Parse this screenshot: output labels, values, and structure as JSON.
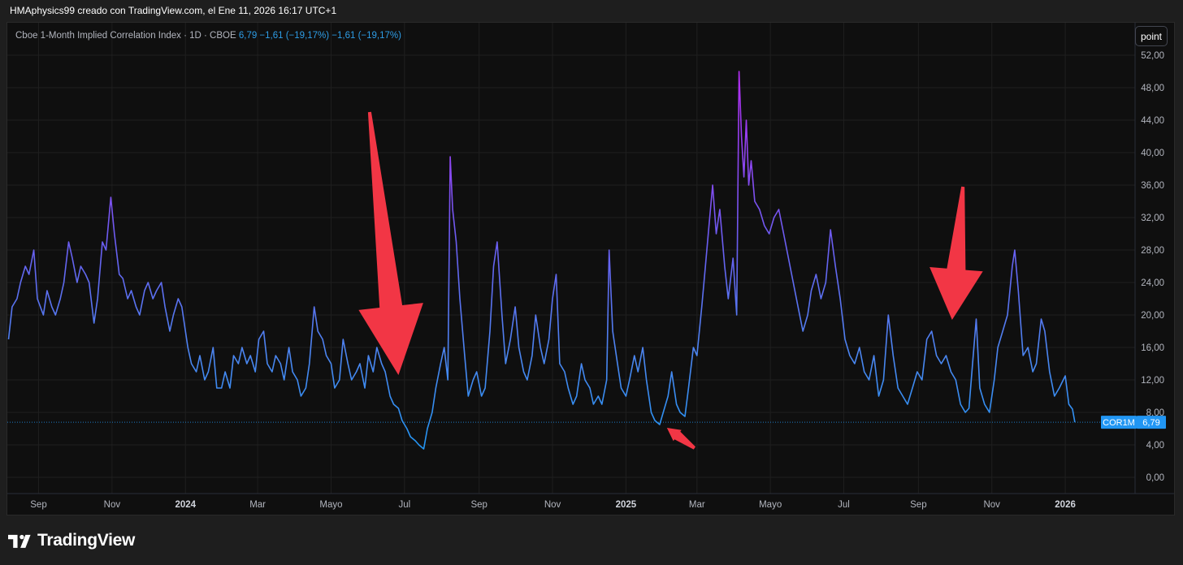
{
  "header": {
    "caption": "HMAphysics99 creado con TradingView.com, el Ene 11, 2026 16:17 UTC+1"
  },
  "legend": {
    "name": "Cboe 1-Month Implied Correlation Index · 1D · CBOE",
    "values": "6,79  −1,61 (−19,17%)  −1,61 (−19,17%)"
  },
  "toolbar": {
    "scale_label": "point"
  },
  "price_tag": {
    "symbol": "COR1M",
    "value": "6,79"
  },
  "footer": {
    "brand": "TradingView"
  },
  "colors": {
    "background": "#0f0f0f",
    "grid": "#1f1f1f",
    "line_low": "#2196f3",
    "line_mid": "#6a5df0",
    "line_high": "#b22cf0",
    "arrow": "#f23645",
    "tag": "#2196f3"
  },
  "chart_data": {
    "type": "line",
    "title": "",
    "xlabel": "",
    "ylabel": "",
    "ylim": [
      -2,
      54
    ],
    "y_ticks": [
      "0,00",
      "4,00",
      "8,00",
      "12,00",
      "16,00",
      "20,00",
      "24,00",
      "28,00",
      "32,00",
      "36,00",
      "40,00",
      "44,00",
      "48,00",
      "52,00"
    ],
    "x_ticks": [
      {
        "label": "Sep",
        "date": "2023-09-01",
        "bold": false
      },
      {
        "label": "Nov",
        "date": "2023-11-01",
        "bold": false
      },
      {
        "label": "2024",
        "date": "2024-01-01",
        "bold": true
      },
      {
        "label": "Mar",
        "date": "2024-03-01",
        "bold": false
      },
      {
        "label": "Mayo",
        "date": "2024-05-01",
        "bold": false
      },
      {
        "label": "Jul",
        "date": "2024-07-01",
        "bold": false
      },
      {
        "label": "Sep",
        "date": "2024-09-01",
        "bold": false
      },
      {
        "label": "Nov",
        "date": "2024-11-01",
        "bold": false
      },
      {
        "label": "2025",
        "date": "2025-01-01",
        "bold": true
      },
      {
        "label": "Mar",
        "date": "2025-03-01",
        "bold": false
      },
      {
        "label": "Mayo",
        "date": "2025-05-01",
        "bold": false
      },
      {
        "label": "Jul",
        "date": "2025-07-01",
        "bold": false
      },
      {
        "label": "Sep",
        "date": "2025-09-01",
        "bold": false
      },
      {
        "label": "Nov",
        "date": "2025-11-01",
        "bold": false
      },
      {
        "label": "2026",
        "date": "2026-01-01",
        "bold": true
      }
    ],
    "x_range": [
      "2023-08-06",
      "2026-02-28"
    ],
    "series": [
      {
        "points": [
          [
            "2023-08-07",
            17
          ],
          [
            "2023-08-10",
            21
          ],
          [
            "2023-08-14",
            22
          ],
          [
            "2023-08-17",
            24
          ],
          [
            "2023-08-21",
            26
          ],
          [
            "2023-08-24",
            25
          ],
          [
            "2023-08-28",
            28
          ],
          [
            "2023-08-31",
            22
          ],
          [
            "2023-09-05",
            20
          ],
          [
            "2023-09-08",
            23
          ],
          [
            "2023-09-12",
            21
          ],
          [
            "2023-09-15",
            20
          ],
          [
            "2023-09-19",
            22
          ],
          [
            "2023-09-22",
            24
          ],
          [
            "2023-09-26",
            29
          ],
          [
            "2023-09-29",
            27
          ],
          [
            "2023-10-03",
            24
          ],
          [
            "2023-10-06",
            26
          ],
          [
            "2023-10-10",
            25
          ],
          [
            "2023-10-13",
            24
          ],
          [
            "2023-10-17",
            19
          ],
          [
            "2023-10-20",
            22
          ],
          [
            "2023-10-24",
            29
          ],
          [
            "2023-10-27",
            28
          ],
          [
            "2023-10-31",
            34.5
          ],
          [
            "2023-11-03",
            30
          ],
          [
            "2023-11-07",
            25
          ],
          [
            "2023-11-10",
            24.5
          ],
          [
            "2023-11-14",
            22
          ],
          [
            "2023-11-17",
            23
          ],
          [
            "2023-11-21",
            21
          ],
          [
            "2023-11-24",
            20
          ],
          [
            "2023-11-28",
            23
          ],
          [
            "2023-12-01",
            24
          ],
          [
            "2023-12-05",
            22
          ],
          [
            "2023-12-08",
            23
          ],
          [
            "2023-12-12",
            24
          ],
          [
            "2023-12-15",
            21
          ],
          [
            "2023-12-19",
            18
          ],
          [
            "2023-12-22",
            20
          ],
          [
            "2023-12-26",
            22
          ],
          [
            "2023-12-29",
            21
          ],
          [
            "2024-01-03",
            16
          ],
          [
            "2024-01-06",
            14
          ],
          [
            "2024-01-10",
            13
          ],
          [
            "2024-01-13",
            15
          ],
          [
            "2024-01-17",
            12
          ],
          [
            "2024-01-20",
            13
          ],
          [
            "2024-01-24",
            16
          ],
          [
            "2024-01-27",
            11
          ],
          [
            "2024-01-31",
            11
          ],
          [
            "2024-02-03",
            13
          ],
          [
            "2024-02-07",
            11
          ],
          [
            "2024-02-10",
            15
          ],
          [
            "2024-02-14",
            14
          ],
          [
            "2024-02-17",
            16
          ],
          [
            "2024-02-21",
            14
          ],
          [
            "2024-02-24",
            15
          ],
          [
            "2024-02-28",
            13
          ],
          [
            "2024-03-02",
            17
          ],
          [
            "2024-03-06",
            18
          ],
          [
            "2024-03-09",
            14
          ],
          [
            "2024-03-13",
            13
          ],
          [
            "2024-03-16",
            15
          ],
          [
            "2024-03-20",
            14
          ],
          [
            "2024-03-23",
            12
          ],
          [
            "2024-03-27",
            16
          ],
          [
            "2024-03-30",
            13
          ],
          [
            "2024-04-03",
            12
          ],
          [
            "2024-04-06",
            10
          ],
          [
            "2024-04-10",
            11
          ],
          [
            "2024-04-13",
            14
          ],
          [
            "2024-04-17",
            21
          ],
          [
            "2024-04-20",
            18
          ],
          [
            "2024-04-24",
            17
          ],
          [
            "2024-04-27",
            15
          ],
          [
            "2024-05-01",
            14
          ],
          [
            "2024-05-04",
            11
          ],
          [
            "2024-05-08",
            12
          ],
          [
            "2024-05-11",
            17
          ],
          [
            "2024-05-15",
            14
          ],
          [
            "2024-05-18",
            12
          ],
          [
            "2024-05-22",
            13
          ],
          [
            "2024-05-25",
            14
          ],
          [
            "2024-05-29",
            11
          ],
          [
            "2024-06-01",
            15
          ],
          [
            "2024-06-05",
            13
          ],
          [
            "2024-06-08",
            16
          ],
          [
            "2024-06-12",
            14
          ],
          [
            "2024-06-15",
            13
          ],
          [
            "2024-06-19",
            10
          ],
          [
            "2024-06-22",
            9
          ],
          [
            "2024-06-26",
            8.5
          ],
          [
            "2024-06-29",
            7
          ],
          [
            "2024-07-03",
            6
          ],
          [
            "2024-07-06",
            5
          ],
          [
            "2024-07-10",
            4.5
          ],
          [
            "2024-07-13",
            4
          ],
          [
            "2024-07-17",
            3.5
          ],
          [
            "2024-07-20",
            6
          ],
          [
            "2024-07-24",
            8
          ],
          [
            "2024-07-27",
            11
          ],
          [
            "2024-07-31",
            14
          ],
          [
            "2024-08-03",
            16
          ],
          [
            "2024-08-06",
            12
          ],
          [
            "2024-08-08",
            39.5
          ],
          [
            "2024-08-10",
            33
          ],
          [
            "2024-08-13",
            29
          ],
          [
            "2024-08-16",
            22
          ],
          [
            "2024-08-20",
            15
          ],
          [
            "2024-08-23",
            10
          ],
          [
            "2024-08-27",
            12
          ],
          [
            "2024-08-30",
            13
          ],
          [
            "2024-09-03",
            10
          ],
          [
            "2024-09-06",
            11
          ],
          [
            "2024-09-10",
            18
          ],
          [
            "2024-09-13",
            26
          ],
          [
            "2024-09-16",
            29
          ],
          [
            "2024-09-20",
            20
          ],
          [
            "2024-09-23",
            14
          ],
          [
            "2024-09-27",
            17
          ],
          [
            "2024-10-01",
            21
          ],
          [
            "2024-10-04",
            16
          ],
          [
            "2024-10-08",
            13
          ],
          [
            "2024-10-11",
            12
          ],
          [
            "2024-10-15",
            15
          ],
          [
            "2024-10-18",
            20
          ],
          [
            "2024-10-22",
            16
          ],
          [
            "2024-10-25",
            14
          ],
          [
            "2024-10-29",
            17
          ],
          [
            "2024-11-01",
            22
          ],
          [
            "2024-11-04",
            25
          ],
          [
            "2024-11-07",
            14
          ],
          [
            "2024-11-11",
            13
          ],
          [
            "2024-11-14",
            11
          ],
          [
            "2024-11-18",
            9
          ],
          [
            "2024-11-21",
            10
          ],
          [
            "2024-11-25",
            14
          ],
          [
            "2024-11-28",
            12
          ],
          [
            "2024-12-02",
            11
          ],
          [
            "2024-12-05",
            9
          ],
          [
            "2024-12-09",
            10
          ],
          [
            "2024-12-12",
            9
          ],
          [
            "2024-12-16",
            12
          ],
          [
            "2024-12-18",
            28
          ],
          [
            "2024-12-21",
            18
          ],
          [
            "2024-12-25",
            14
          ],
          [
            "2024-12-28",
            11
          ],
          [
            "2025-01-01",
            10
          ],
          [
            "2025-01-04",
            12
          ],
          [
            "2025-01-08",
            15
          ],
          [
            "2025-01-11",
            13
          ],
          [
            "2025-01-15",
            16
          ],
          [
            "2025-01-18",
            12
          ],
          [
            "2025-01-22",
            8
          ],
          [
            "2025-01-25",
            7
          ],
          [
            "2025-01-29",
            6.5
          ],
          [
            "2025-02-01",
            8
          ],
          [
            "2025-02-05",
            10
          ],
          [
            "2025-02-08",
            13
          ],
          [
            "2025-02-12",
            9
          ],
          [
            "2025-02-15",
            8
          ],
          [
            "2025-02-19",
            7.5
          ],
          [
            "2025-02-22",
            11
          ],
          [
            "2025-02-26",
            16
          ],
          [
            "2025-03-01",
            15
          ],
          [
            "2025-03-05",
            21
          ],
          [
            "2025-03-08",
            26
          ],
          [
            "2025-03-11",
            31
          ],
          [
            "2025-03-14",
            36
          ],
          [
            "2025-03-17",
            30
          ],
          [
            "2025-03-20",
            33
          ],
          [
            "2025-03-24",
            26
          ],
          [
            "2025-03-27",
            22
          ],
          [
            "2025-03-31",
            27
          ],
          [
            "2025-04-03",
            20
          ],
          [
            "2025-04-05",
            50
          ],
          [
            "2025-04-07",
            42
          ],
          [
            "2025-04-09",
            37
          ],
          [
            "2025-04-11",
            44
          ],
          [
            "2025-04-13",
            36
          ],
          [
            "2025-04-15",
            39
          ],
          [
            "2025-04-18",
            34
          ],
          [
            "2025-04-22",
            33
          ],
          [
            "2025-04-26",
            31
          ],
          [
            "2025-04-30",
            30
          ],
          [
            "2025-05-04",
            32
          ],
          [
            "2025-05-08",
            33
          ],
          [
            "2025-05-12",
            30
          ],
          [
            "2025-05-16",
            27
          ],
          [
            "2025-05-20",
            24
          ],
          [
            "2025-05-24",
            21
          ],
          [
            "2025-05-28",
            18
          ],
          [
            "2025-06-01",
            20
          ],
          [
            "2025-06-04",
            23
          ],
          [
            "2025-06-08",
            25
          ],
          [
            "2025-06-12",
            22
          ],
          [
            "2025-06-16",
            24
          ],
          [
            "2025-06-20",
            30.5
          ],
          [
            "2025-06-24",
            26
          ],
          [
            "2025-06-28",
            22
          ],
          [
            "2025-07-02",
            17
          ],
          [
            "2025-07-06",
            15
          ],
          [
            "2025-07-10",
            14
          ],
          [
            "2025-07-14",
            16
          ],
          [
            "2025-07-18",
            13
          ],
          [
            "2025-07-22",
            12
          ],
          [
            "2025-07-26",
            15
          ],
          [
            "2025-07-30",
            10
          ],
          [
            "2025-08-03",
            12
          ],
          [
            "2025-08-07",
            20
          ],
          [
            "2025-08-11",
            15
          ],
          [
            "2025-08-15",
            11
          ],
          [
            "2025-08-19",
            10
          ],
          [
            "2025-08-23",
            9
          ],
          [
            "2025-08-27",
            11
          ],
          [
            "2025-08-31",
            13
          ],
          [
            "2025-09-04",
            12
          ],
          [
            "2025-09-08",
            17
          ],
          [
            "2025-09-12",
            18
          ],
          [
            "2025-09-16",
            15
          ],
          [
            "2025-09-20",
            14
          ],
          [
            "2025-09-24",
            15
          ],
          [
            "2025-09-28",
            13
          ],
          [
            "2025-10-02",
            12
          ],
          [
            "2025-10-06",
            9
          ],
          [
            "2025-10-10",
            8
          ],
          [
            "2025-10-13",
            8.5
          ],
          [
            "2025-10-16",
            14
          ],
          [
            "2025-10-19",
            19.5
          ],
          [
            "2025-10-22",
            11
          ],
          [
            "2025-10-26",
            9
          ],
          [
            "2025-10-30",
            8
          ],
          [
            "2025-11-03",
            12
          ],
          [
            "2025-11-06",
            16
          ],
          [
            "2025-11-10",
            18
          ],
          [
            "2025-11-14",
            20
          ],
          [
            "2025-11-18",
            26
          ],
          [
            "2025-11-20",
            28
          ],
          [
            "2025-11-23",
            23
          ],
          [
            "2025-11-27",
            15
          ],
          [
            "2025-12-01",
            16
          ],
          [
            "2025-12-05",
            13
          ],
          [
            "2025-12-08",
            14
          ],
          [
            "2025-12-12",
            19.5
          ],
          [
            "2025-12-15",
            18
          ],
          [
            "2025-12-19",
            13
          ],
          [
            "2025-12-23",
            10
          ],
          [
            "2025-12-27",
            11
          ],
          [
            "2026-01-01",
            12.5
          ],
          [
            "2026-01-04",
            9
          ],
          [
            "2026-01-07",
            8.4
          ],
          [
            "2026-01-09",
            6.79
          ]
        ]
      }
    ],
    "last_value": 6.79,
    "last_date": "2026-01-09",
    "annotations": [
      {
        "type": "arrow",
        "from": [
          "2024-06-02",
          45
        ],
        "to": [
          "2024-06-26",
          12.6
        ]
      },
      {
        "type": "arrow",
        "from": [
          "2025-02-27",
          3.6
        ],
        "to": [
          "2025-02-04",
          6.1
        ]
      },
      {
        "type": "arrow",
        "from": [
          "2025-10-08",
          35.8
        ],
        "to": [
          "2025-09-29",
          19.4
        ]
      }
    ]
  }
}
